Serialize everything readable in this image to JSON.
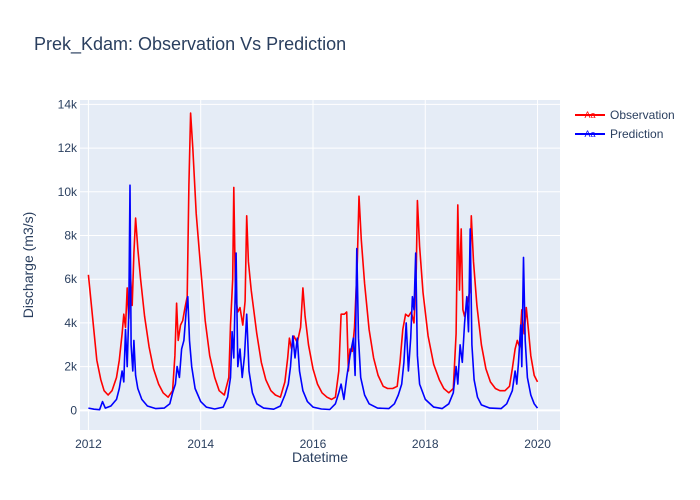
{
  "chart_data": {
    "type": "line",
    "title": "Prek_Kdam: Observation Vs Prediction",
    "xlabel": "Datetime",
    "ylabel": "Discharge (m3/s)",
    "xlim": [
      2011.85,
      2020.4
    ],
    "ylim": [
      -900,
      14200
    ],
    "x_ticks": [
      2012,
      2014,
      2016,
      2018,
      2020
    ],
    "x_tick_labels": [
      "2012",
      "2014",
      "2016",
      "2018",
      "2020"
    ],
    "y_ticks": [
      0,
      2000,
      4000,
      6000,
      8000,
      10000,
      12000,
      14000
    ],
    "y_tick_labels": [
      "0",
      "2k",
      "4k",
      "6k",
      "8k",
      "10k",
      "12k",
      "14k"
    ],
    "grid": true,
    "legend_position": "top-right",
    "legend_symbol": "Aa",
    "series": [
      {
        "name": "Observation",
        "color": "#ff0000",
        "points": [
          [
            2012.0,
            6200
          ],
          [
            2012.05,
            4900
          ],
          [
            2012.1,
            3600
          ],
          [
            2012.15,
            2300
          ],
          [
            2012.22,
            1400
          ],
          [
            2012.28,
            900
          ],
          [
            2012.35,
            700
          ],
          [
            2012.42,
            900
          ],
          [
            2012.5,
            1500
          ],
          [
            2012.55,
            2300
          ],
          [
            2012.6,
            3500
          ],
          [
            2012.63,
            4400
          ],
          [
            2012.66,
            3800
          ],
          [
            2012.69,
            5600
          ],
          [
            2012.72,
            4200
          ],
          [
            2012.75,
            6200
          ],
          [
            2012.78,
            4800
          ],
          [
            2012.81,
            7200
          ],
          [
            2012.84,
            8800
          ],
          [
            2012.88,
            7400
          ],
          [
            2012.93,
            6000
          ],
          [
            2013.0,
            4300
          ],
          [
            2013.08,
            2900
          ],
          [
            2013.16,
            1900
          ],
          [
            2013.25,
            1200
          ],
          [
            2013.33,
            800
          ],
          [
            2013.42,
            600
          ],
          [
            2013.5,
            900
          ],
          [
            2013.54,
            2500
          ],
          [
            2013.57,
            4900
          ],
          [
            2013.6,
            3200
          ],
          [
            2013.64,
            3900
          ],
          [
            2013.68,
            4100
          ],
          [
            2013.72,
            4700
          ],
          [
            2013.76,
            5200
          ],
          [
            2013.79,
            10300
          ],
          [
            2013.82,
            13600
          ],
          [
            2013.86,
            12000
          ],
          [
            2013.92,
            9000
          ],
          [
            2014.0,
            6500
          ],
          [
            2014.08,
            4100
          ],
          [
            2014.16,
            2500
          ],
          [
            2014.25,
            1500
          ],
          [
            2014.33,
            900
          ],
          [
            2014.42,
            700
          ],
          [
            2014.5,
            1500
          ],
          [
            2014.53,
            3900
          ],
          [
            2014.57,
            6000
          ],
          [
            2014.59,
            10200
          ],
          [
            2014.62,
            5200
          ],
          [
            2014.66,
            4500
          ],
          [
            2014.7,
            4700
          ],
          [
            2014.75,
            3900
          ],
          [
            2014.79,
            5000
          ],
          [
            2014.82,
            8900
          ],
          [
            2014.85,
            6800
          ],
          [
            2014.9,
            5500
          ],
          [
            2015.0,
            3500
          ],
          [
            2015.08,
            2200
          ],
          [
            2015.16,
            1400
          ],
          [
            2015.25,
            900
          ],
          [
            2015.33,
            700
          ],
          [
            2015.42,
            600
          ],
          [
            2015.5,
            1300
          ],
          [
            2015.55,
            2400
          ],
          [
            2015.58,
            3300
          ],
          [
            2015.62,
            2800
          ],
          [
            2015.66,
            3400
          ],
          [
            2015.72,
            3100
          ],
          [
            2015.78,
            3800
          ],
          [
            2015.82,
            5600
          ],
          [
            2015.86,
            4300
          ],
          [
            2015.92,
            3000
          ],
          [
            2016.0,
            1900
          ],
          [
            2016.08,
            1200
          ],
          [
            2016.16,
            800
          ],
          [
            2016.25,
            600
          ],
          [
            2016.33,
            500
          ],
          [
            2016.4,
            600
          ],
          [
            2016.46,
            1800
          ],
          [
            2016.5,
            4400
          ],
          [
            2016.56,
            4400
          ],
          [
            2016.6,
            4500
          ],
          [
            2016.63,
            1800
          ],
          [
            2016.66,
            2800
          ],
          [
            2016.7,
            2700
          ],
          [
            2016.74,
            3800
          ],
          [
            2016.79,
            6800
          ],
          [
            2016.82,
            9800
          ],
          [
            2016.86,
            7800
          ],
          [
            2016.92,
            5800
          ],
          [
            2017.0,
            3700
          ],
          [
            2017.08,
            2400
          ],
          [
            2017.16,
            1600
          ],
          [
            2017.25,
            1100
          ],
          [
            2017.33,
            1000
          ],
          [
            2017.42,
            1000
          ],
          [
            2017.5,
            1100
          ],
          [
            2017.55,
            2200
          ],
          [
            2017.6,
            3700
          ],
          [
            2017.65,
            4400
          ],
          [
            2017.7,
            4300
          ],
          [
            2017.75,
            4500
          ],
          [
            2017.8,
            4000
          ],
          [
            2017.84,
            6500
          ],
          [
            2017.86,
            9600
          ],
          [
            2017.9,
            7500
          ],
          [
            2017.96,
            5400
          ],
          [
            2018.05,
            3400
          ],
          [
            2018.15,
            2100
          ],
          [
            2018.25,
            1400
          ],
          [
            2018.33,
            1000
          ],
          [
            2018.42,
            800
          ],
          [
            2018.5,
            1000
          ],
          [
            2018.55,
            3500
          ],
          [
            2018.58,
            9400
          ],
          [
            2018.61,
            5500
          ],
          [
            2018.64,
            8300
          ],
          [
            2018.67,
            4600
          ],
          [
            2018.7,
            4300
          ],
          [
            2018.74,
            4800
          ],
          [
            2018.79,
            5400
          ],
          [
            2018.82,
            8900
          ],
          [
            2018.86,
            6800
          ],
          [
            2018.92,
            4800
          ],
          [
            2019.0,
            3000
          ],
          [
            2019.08,
            1900
          ],
          [
            2019.16,
            1300
          ],
          [
            2019.25,
            1000
          ],
          [
            2019.33,
            900
          ],
          [
            2019.42,
            900
          ],
          [
            2019.5,
            1100
          ],
          [
            2019.55,
            1900
          ],
          [
            2019.6,
            2800
          ],
          [
            2019.64,
            3200
          ],
          [
            2019.68,
            2900
          ],
          [
            2019.72,
            4600
          ],
          [
            2019.76,
            3500
          ],
          [
            2019.8,
            4700
          ],
          [
            2019.84,
            3600
          ],
          [
            2019.88,
            2500
          ],
          [
            2019.94,
            1600
          ],
          [
            2020.0,
            1300
          ]
        ]
      },
      {
        "name": "Prediction",
        "color": "#0000ff",
        "points": [
          [
            2012.0,
            100
          ],
          [
            2012.1,
            50
          ],
          [
            2012.2,
            30
          ],
          [
            2012.25,
            400
          ],
          [
            2012.3,
            100
          ],
          [
            2012.4,
            200
          ],
          [
            2012.5,
            500
          ],
          [
            2012.55,
            1000
          ],
          [
            2012.6,
            1800
          ],
          [
            2012.63,
            1300
          ],
          [
            2012.66,
            3700
          ],
          [
            2012.69,
            2000
          ],
          [
            2012.72,
            4500
          ],
          [
            2012.74,
            10300
          ],
          [
            2012.76,
            3000
          ],
          [
            2012.79,
            1800
          ],
          [
            2012.81,
            3200
          ],
          [
            2012.84,
            1600
          ],
          [
            2012.88,
            1000
          ],
          [
            2012.95,
            500
          ],
          [
            2013.05,
            200
          ],
          [
            2013.2,
            80
          ],
          [
            2013.35,
            100
          ],
          [
            2013.45,
            300
          ],
          [
            2013.5,
            800
          ],
          [
            2013.55,
            1200
          ],
          [
            2013.58,
            2000
          ],
          [
            2013.62,
            1500
          ],
          [
            2013.66,
            2800
          ],
          [
            2013.7,
            3200
          ],
          [
            2013.74,
            4500
          ],
          [
            2013.77,
            5200
          ],
          [
            2013.8,
            3200
          ],
          [
            2013.84,
            2000
          ],
          [
            2013.9,
            1000
          ],
          [
            2014.0,
            400
          ],
          [
            2014.1,
            150
          ],
          [
            2014.25,
            60
          ],
          [
            2014.4,
            150
          ],
          [
            2014.48,
            600
          ],
          [
            2014.53,
            1500
          ],
          [
            2014.56,
            3600
          ],
          [
            2014.59,
            2400
          ],
          [
            2014.63,
            7200
          ],
          [
            2014.66,
            2000
          ],
          [
            2014.7,
            2800
          ],
          [
            2014.74,
            1500
          ],
          [
            2014.78,
            2500
          ],
          [
            2014.82,
            4400
          ],
          [
            2014.86,
            1800
          ],
          [
            2014.92,
            800
          ],
          [
            2015.0,
            300
          ],
          [
            2015.12,
            100
          ],
          [
            2015.3,
            50
          ],
          [
            2015.42,
            200
          ],
          [
            2015.5,
            700
          ],
          [
            2015.56,
            1200
          ],
          [
            2015.6,
            2000
          ],
          [
            2015.64,
            3400
          ],
          [
            2015.68,
            2400
          ],
          [
            2015.72,
            3300
          ],
          [
            2015.76,
            1800
          ],
          [
            2015.82,
            900
          ],
          [
            2015.9,
            400
          ],
          [
            2016.0,
            150
          ],
          [
            2016.15,
            60
          ],
          [
            2016.3,
            40
          ],
          [
            2016.4,
            300
          ],
          [
            2016.46,
            800
          ],
          [
            2016.5,
            1200
          ],
          [
            2016.55,
            500
          ],
          [
            2016.6,
            1500
          ],
          [
            2016.66,
            2500
          ],
          [
            2016.72,
            3300
          ],
          [
            2016.75,
            1600
          ],
          [
            2016.78,
            7400
          ],
          [
            2016.81,
            3300
          ],
          [
            2016.85,
            1500
          ],
          [
            2016.92,
            700
          ],
          [
            2017.0,
            300
          ],
          [
            2017.15,
            100
          ],
          [
            2017.35,
            80
          ],
          [
            2017.45,
            300
          ],
          [
            2017.52,
            700
          ],
          [
            2017.58,
            1200
          ],
          [
            2017.62,
            2200
          ],
          [
            2017.66,
            4000
          ],
          [
            2017.7,
            1800
          ],
          [
            2017.74,
            3300
          ],
          [
            2017.77,
            5200
          ],
          [
            2017.8,
            4600
          ],
          [
            2017.83,
            7200
          ],
          [
            2017.86,
            2500
          ],
          [
            2017.9,
            1200
          ],
          [
            2018.0,
            500
          ],
          [
            2018.15,
            150
          ],
          [
            2018.3,
            80
          ],
          [
            2018.42,
            300
          ],
          [
            2018.5,
            800
          ],
          [
            2018.55,
            2000
          ],
          [
            2018.58,
            1200
          ],
          [
            2018.62,
            3000
          ],
          [
            2018.66,
            2200
          ],
          [
            2018.7,
            4000
          ],
          [
            2018.74,
            5200
          ],
          [
            2018.77,
            3600
          ],
          [
            2018.8,
            8300
          ],
          [
            2018.83,
            3000
          ],
          [
            2018.87,
            1400
          ],
          [
            2018.93,
            600
          ],
          [
            2019.0,
            250
          ],
          [
            2019.15,
            100
          ],
          [
            2019.35,
            80
          ],
          [
            2019.45,
            300
          ],
          [
            2019.55,
            900
          ],
          [
            2019.6,
            1800
          ],
          [
            2019.63,
            1200
          ],
          [
            2019.66,
            2200
          ],
          [
            2019.7,
            3900
          ],
          [
            2019.72,
            2000
          ],
          [
            2019.75,
            7000
          ],
          [
            2019.78,
            3200
          ],
          [
            2019.82,
            1500
          ],
          [
            2019.88,
            700
          ],
          [
            2019.94,
            300
          ],
          [
            2020.0,
            100
          ]
        ]
      }
    ]
  }
}
